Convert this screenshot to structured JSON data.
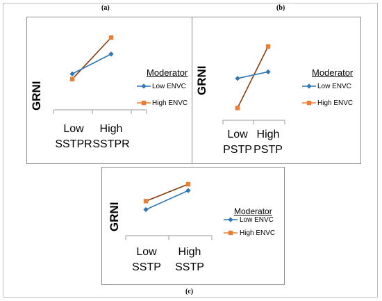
{
  "captions": {
    "a": "(a)",
    "b": "(b)",
    "c": "(c)"
  },
  "colors": {
    "low": "#2e75b6",
    "high": "#ed7d31",
    "high_line": "#843c0c"
  },
  "chart_data": [
    {
      "type": "line",
      "title": "",
      "ylabel": "GRNI",
      "categories_line1": [
        "Low",
        "High"
      ],
      "categories_line2": [
        "SSTPR",
        "SSTPR"
      ],
      "legend_title": "Moderator",
      "ylim": [
        0,
        10
      ],
      "series": [
        {
          "name": "Low ENVC",
          "values": [
            4.5,
            7.5
          ]
        },
        {
          "name": "High ENVC",
          "values": [
            3.7,
            10.0
          ]
        }
      ]
    },
    {
      "type": "line",
      "title": "",
      "ylabel": "GRNI",
      "categories_line1": [
        "Low",
        "High"
      ],
      "categories_line2": [
        "PSTP",
        "PSTP"
      ],
      "legend_title": "Moderator",
      "ylim": [
        0,
        10
      ],
      "series": [
        {
          "name": "Low ENVC",
          "values": [
            5.1,
            5.9
          ]
        },
        {
          "name": "High ENVC",
          "values": [
            1.5,
            9.0
          ]
        }
      ]
    },
    {
      "type": "line",
      "title": "",
      "ylabel": "GRNI",
      "categories_line1": [
        "Low",
        "High"
      ],
      "categories_line2": [
        "SSTP",
        "SSTP"
      ],
      "legend_title": "Moderator",
      "ylim": [
        0,
        10
      ],
      "series": [
        {
          "name": "Low ENVC",
          "values": [
            5.2,
            8.8
          ]
        },
        {
          "name": "High ENVC",
          "values": [
            6.8,
            10.0
          ]
        }
      ]
    }
  ]
}
